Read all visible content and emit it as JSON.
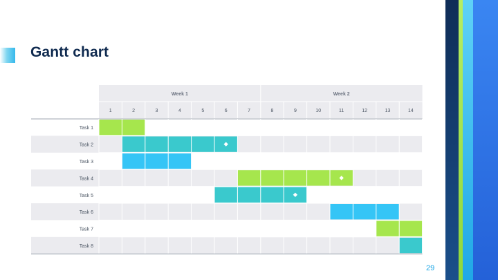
{
  "slide": {
    "title": "Gantt chart",
    "page_number": "29"
  },
  "colors": {
    "green": "#a6e64d",
    "teal": "#3ac9cd",
    "blue": "#35c5f6",
    "header_bg": "#ebebef",
    "band_bg": "#ebebef",
    "grid_line": "#ffffff",
    "stripe_navy": "#163a6a",
    "stripe_lime": "#a6e64d",
    "stripe_sky": "#37bff0",
    "stripe_blue": "#2f7cf0"
  },
  "chart_data": {
    "type": "gantt",
    "weeks": [
      {
        "label": "Week 1",
        "days": [
          1,
          2,
          3,
          4,
          5,
          6,
          7
        ]
      },
      {
        "label": "Week 2",
        "days": [
          8,
          9,
          10,
          11,
          12,
          13,
          14
        ]
      }
    ],
    "days": [
      "1",
      "2",
      "3",
      "4",
      "5",
      "6",
      "7",
      "8",
      "9",
      "10",
      "11",
      "12",
      "13",
      "14"
    ],
    "tasks": [
      {
        "name": "Task 1",
        "start": 1,
        "end": 2,
        "color": "green",
        "milestone": null
      },
      {
        "name": "Task 2",
        "start": 2,
        "end": 6,
        "color": "teal",
        "milestone": 6
      },
      {
        "name": "Task 3",
        "start": 2,
        "end": 4,
        "color": "blue",
        "milestone": null
      },
      {
        "name": "Task 4",
        "start": 7,
        "end": 11,
        "color": "green",
        "milestone": 11
      },
      {
        "name": "Task 5",
        "start": 6,
        "end": 9,
        "color": "teal",
        "milestone": 9
      },
      {
        "name": "Task 6",
        "start": 11,
        "end": 13,
        "color": "blue",
        "milestone": null
      },
      {
        "name": "Task 7",
        "start": 13,
        "end": 14,
        "color": "green",
        "milestone": null
      },
      {
        "name": "Task 8",
        "start": 14,
        "end": 14,
        "color": "teal",
        "milestone": null
      }
    ]
  }
}
